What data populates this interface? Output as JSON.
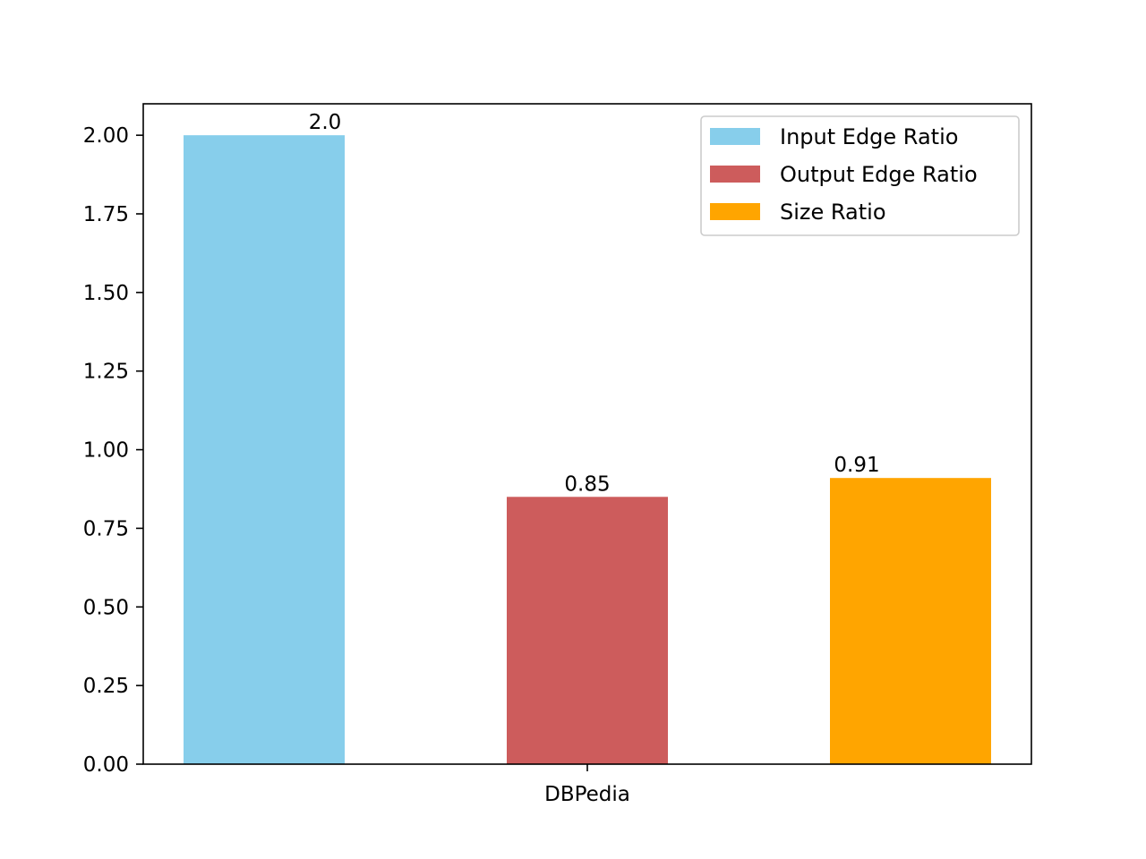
{
  "chart_data": {
    "type": "bar",
    "categories": [
      "DBPedia"
    ],
    "series": [
      {
        "name": "Input Edge Ratio",
        "values": [
          2.0
        ],
        "label": "2.0",
        "color": "#87CEEB"
      },
      {
        "name": "Output Edge Ratio",
        "values": [
          0.85
        ],
        "label": "0.85",
        "color": "#CD5C5C"
      },
      {
        "name": "Size Ratio",
        "values": [
          0.91
        ],
        "label": "0.91",
        "color": "#FFA500"
      }
    ],
    "ylim": [
      0,
      2.1
    ],
    "yticks": [
      {
        "value": 0,
        "label": "0.00"
      },
      {
        "value": 0.25,
        "label": "0.25"
      },
      {
        "value": 0.5,
        "label": "0.50"
      },
      {
        "value": 0.75,
        "label": "0.75"
      },
      {
        "value": 1.0,
        "label": "1.00"
      },
      {
        "value": 1.25,
        "label": "1.25"
      },
      {
        "value": 1.5,
        "label": "1.50"
      },
      {
        "value": 1.75,
        "label": "1.75"
      },
      {
        "value": 2.0,
        "label": "2.00"
      }
    ],
    "title": "",
    "xlabel": "",
    "ylabel": "",
    "grid": false,
    "legend_position": "top-right"
  }
}
